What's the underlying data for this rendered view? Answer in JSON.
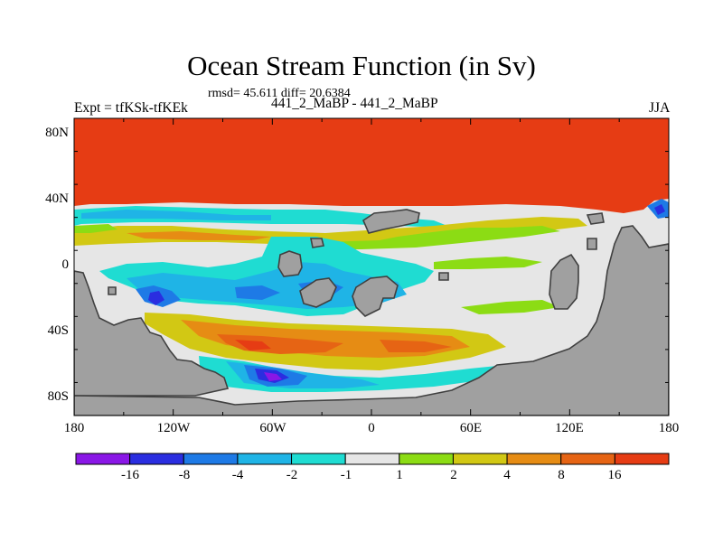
{
  "title": "Ocean Stream Function (in Sv)",
  "stats": "rmsd= 45.611 diff= 20.6384",
  "expt": "Expt = tfKSk-tfKEk",
  "case": "441_2_MaBP - 441_2_MaBP",
  "season": "JJA",
  "lat_labels": [
    "80N",
    "40N",
    "0",
    "40S",
    "80S"
  ],
  "lon_labels": [
    "180",
    "120W",
    "60W",
    "0",
    "60E",
    "120E",
    "180"
  ],
  "colorbar": {
    "labels": [
      "-16",
      "-8",
      "-4",
      "-2",
      "-1",
      "1",
      "2",
      "4",
      "8",
      "16"
    ],
    "colors": [
      "#8a17e6",
      "#2a2ee0",
      "#1e7ae6",
      "#1fb4e6",
      "#1fdcd2",
      "#e6e6e6",
      "#8cdc14",
      "#d2c814",
      "#e68c14",
      "#e66414",
      "#e63c14"
    ]
  },
  "land_color": "#a0a0a0"
}
